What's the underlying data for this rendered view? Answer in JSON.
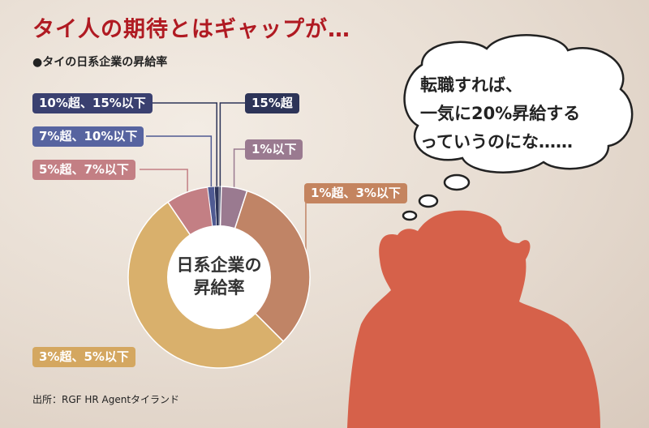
{
  "title": "タイ人の期待とはギャップが…",
  "subtitle": "●タイの日系企業の昇給率",
  "source": "出所：RGF HR Agentタイランド",
  "bubble": {
    "lines": [
      "転職すれば、",
      "一気に20%昇給する",
      "っていうのにな……"
    ]
  },
  "chart_data": {
    "type": "pie",
    "donut": true,
    "title": "タイの日系企業の昇給率",
    "center_label": [
      "日系企業の",
      "昇給率"
    ],
    "slices": [
      {
        "label": "15%超",
        "value": 0.4,
        "color": "#2d3458"
      },
      {
        "label": "1%以下",
        "value": 4.6,
        "color": "#9a7a90"
      },
      {
        "label": "1%超、3%以下",
        "value": 32.5,
        "color": "#c08466"
      },
      {
        "label": "3%超、5%以下",
        "value": 53,
        "color": "#d9b06c"
      },
      {
        "label": "5%超、7%以下",
        "value": 7.5,
        "color": "#c37f84"
      },
      {
        "label": "7%超、10%以下",
        "value": 1.2,
        "color": "#4f5a92"
      },
      {
        "label": "10%超、15%以下",
        "value": 0.8,
        "color": "#2d3458"
      }
    ]
  },
  "colors": {
    "title": "#b01a22",
    "silhouette": "#d6614a"
  }
}
